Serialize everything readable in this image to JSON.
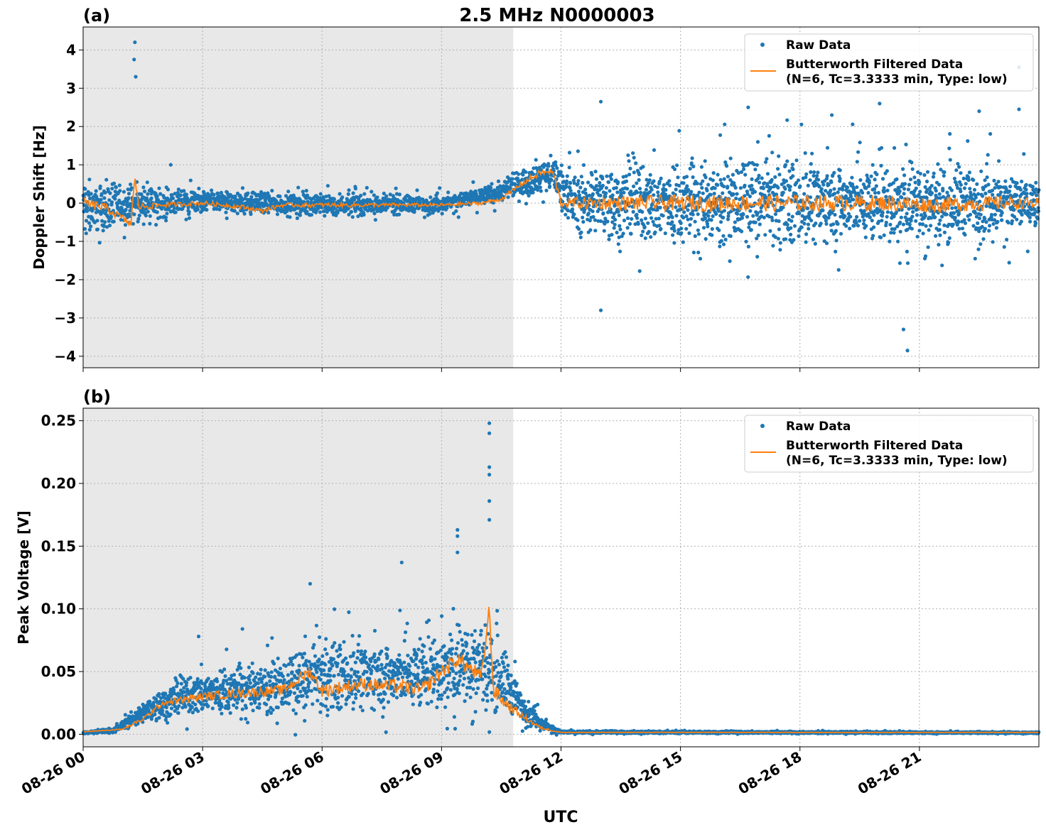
{
  "figure": {
    "title": "2.5 MHz N0000003",
    "xlabel": "UTC"
  },
  "colors": {
    "raw": "#1f77b4",
    "filtered": "#ff7f0e",
    "shade": "#e8e8e8",
    "grid": "#b0b0b0"
  },
  "chart_data": [
    {
      "type": "scatter",
      "panel_label": "(a)",
      "ylabel": "Doppler Shift [Hz]",
      "xlim_hours": [
        0,
        24
      ],
      "ylim": [
        -4.3,
        4.6
      ],
      "yticks": [
        -4,
        -3,
        -2,
        -1,
        0,
        1,
        2,
        3,
        4
      ],
      "ytick_labels": [
        "−4",
        "−3",
        "−2",
        "−1",
        "0",
        "1",
        "2",
        "3",
        "4"
      ],
      "xticks_hours": [
        0,
        3,
        6,
        9,
        12,
        15,
        18,
        21
      ],
      "xtick_labels": [
        "08-26 00",
        "08-26 03",
        "08-26 06",
        "08-26 09",
        "08-26 12",
        "08-26 15",
        "08-26 18",
        "08-26 21"
      ],
      "night_shade_hours": [
        0,
        10.8
      ],
      "grid": true,
      "legend_position": "top-right",
      "legend": [
        "Raw Data",
        "Butterworth Filtered Data",
        "(N=6, Tc=3.3333 min, Type: low)"
      ],
      "series": [
        {
          "name": "Raw Data",
          "kind": "scatter",
          "envelope_hours": [
            0,
            0.5,
            1.3,
            2.0,
            3.0,
            6.0,
            9.0,
            10.5,
            11.2,
            11.8,
            12.3,
            14.0,
            17.0,
            20.0,
            22.5,
            24.0
          ],
          "envelope_low": [
            -1.0,
            -0.8,
            -0.6,
            -0.45,
            -0.3,
            -0.4,
            -0.3,
            0.0,
            0.1,
            0.3,
            -0.9,
            -1.3,
            -1.3,
            -1.3,
            -1.2,
            -0.8
          ],
          "envelope_high": [
            0.8,
            0.6,
            0.5,
            0.4,
            0.4,
            0.3,
            0.25,
            0.6,
            1.1,
            1.3,
            1.0,
            1.3,
            1.4,
            1.3,
            1.3,
            0.8
          ],
          "spikes": [
            [
              1.3,
              4.2
            ],
            [
              1.28,
              3.75
            ],
            [
              1.32,
              3.3
            ],
            [
              2.2,
              1.0
            ],
            [
              13.0,
              2.65
            ],
            [
              13.0,
              -2.8
            ],
            [
              16.7,
              2.5
            ],
            [
              18.8,
              2.3
            ],
            [
              20.0,
              2.6
            ],
            [
              20.7,
              -3.85
            ],
            [
              20.6,
              -3.3
            ],
            [
              22.5,
              2.4
            ],
            [
              23.5,
              3.55
            ],
            [
              23.5,
              2.45
            ]
          ]
        },
        {
          "name": "Butterworth Filtered Data",
          "kind": "line",
          "x_hours": [
            0,
            0.5,
            1.0,
            1.2,
            1.3,
            1.4,
            2.0,
            3.0,
            4.0,
            4.5,
            5.0,
            6.0,
            7.0,
            8.0,
            9.0,
            10.0,
            10.5,
            11.0,
            11.5,
            11.8,
            12.0,
            13.0,
            15.0,
            18.0,
            20.0,
            21.5,
            22.5,
            24.0
          ],
          "y": [
            0.0,
            -0.1,
            -0.4,
            -0.55,
            0.65,
            -0.1,
            -0.05,
            0.0,
            -0.1,
            -0.2,
            -0.05,
            -0.05,
            -0.05,
            -0.05,
            -0.05,
            0.0,
            0.1,
            0.5,
            0.8,
            0.8,
            0.0,
            0.0,
            0.0,
            0.0,
            0.0,
            -0.05,
            0.0,
            0.0
          ]
        }
      ]
    },
    {
      "type": "scatter",
      "panel_label": "(b)",
      "ylabel": "Peak Voltage [V]",
      "xlim_hours": [
        0,
        24
      ],
      "ylim": [
        -0.01,
        0.26
      ],
      "yticks": [
        0.0,
        0.05,
        0.1,
        0.15,
        0.2,
        0.25
      ],
      "ytick_labels": [
        "0.00",
        "0.05",
        "0.10",
        "0.15",
        "0.20",
        "0.25"
      ],
      "xticks_hours": [
        0,
        3,
        6,
        9,
        12,
        15,
        18,
        21
      ],
      "xtick_labels": [
        "08-26 00",
        "08-26 03",
        "08-26 06",
        "08-26 09",
        "08-26 12",
        "08-26 15",
        "08-26 18",
        "08-26 21"
      ],
      "night_shade_hours": [
        0,
        10.8
      ],
      "grid": true,
      "legend_position": "top-right",
      "legend": [
        "Raw Data",
        "Butterworth Filtered Data",
        "(N=6, Tc=3.3333 min, Type: low)"
      ],
      "series": [
        {
          "name": "Raw Data",
          "kind": "scatter",
          "envelope_hours": [
            0,
            0.8,
            1.2,
            2.0,
            3.0,
            4.0,
            5.0,
            6.0,
            7.0,
            8.0,
            9.0,
            10.0,
            10.5,
            11.0,
            11.5,
            12.0,
            24.0
          ],
          "envelope_low": [
            0.0,
            0.001,
            0.005,
            0.01,
            0.012,
            0.012,
            0.013,
            0.013,
            0.013,
            0.013,
            0.013,
            0.015,
            0.012,
            0.006,
            0.002,
            0.0005,
            0.0005
          ],
          "envelope_high": [
            0.002,
            0.006,
            0.018,
            0.04,
            0.055,
            0.06,
            0.065,
            0.08,
            0.08,
            0.08,
            0.09,
            0.1,
            0.08,
            0.04,
            0.015,
            0.003,
            0.002
          ],
          "spikes": [
            [
              10.2,
              0.248
            ],
            [
              10.2,
              0.24
            ],
            [
              10.2,
              0.213
            ],
            [
              10.2,
              0.207
            ],
            [
              10.2,
              0.186
            ],
            [
              10.2,
              0.171
            ],
            [
              9.4,
              0.163
            ],
            [
              9.4,
              0.158
            ],
            [
              9.4,
              0.145
            ],
            [
              8.0,
              0.137
            ],
            [
              5.7,
              0.12
            ],
            [
              2.9,
              0.078
            ],
            [
              4.0,
              0.084
            ],
            [
              15.1,
              0.003
            ]
          ]
        },
        {
          "name": "Butterworth Filtered Data",
          "kind": "line",
          "x_hours": [
            0,
            1.0,
            1.5,
            2.0,
            3.0,
            4.0,
            5.0,
            5.7,
            6.0,
            7.0,
            8.0,
            8.5,
            9.0,
            9.4,
            10.0,
            10.2,
            10.3,
            10.6,
            11.0,
            11.5,
            12.0,
            24.0
          ],
          "y": [
            0.002,
            0.004,
            0.012,
            0.025,
            0.03,
            0.033,
            0.035,
            0.05,
            0.035,
            0.04,
            0.038,
            0.035,
            0.05,
            0.06,
            0.045,
            0.1,
            0.035,
            0.025,
            0.015,
            0.005,
            0.0015,
            0.0015
          ]
        }
      ]
    }
  ]
}
